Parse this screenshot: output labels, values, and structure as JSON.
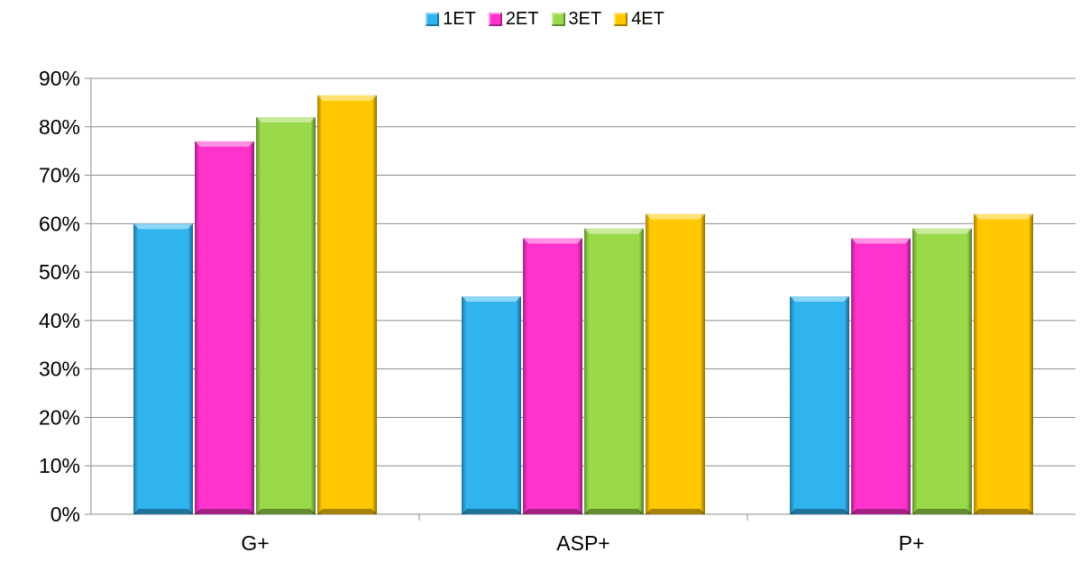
{
  "chart_data": {
    "type": "bar",
    "categories": [
      "G+",
      "ASP+",
      "P+"
    ],
    "series": [
      {
        "name": "1ET",
        "color": "#2FB4F0",
        "values": [
          0.6,
          0.45,
          0.45
        ]
      },
      {
        "name": "2ET",
        "color": "#FF33CC",
        "values": [
          0.77,
          0.57,
          0.57
        ]
      },
      {
        "name": "3ET",
        "color": "#99D94A",
        "values": [
          0.82,
          0.59,
          0.59
        ]
      },
      {
        "name": "4ET",
        "color": "#FFC800",
        "values": [
          0.865,
          0.62,
          0.62
        ]
      }
    ],
    "ylim": [
      0,
      0.9
    ],
    "yticks": [
      "0%",
      "10%",
      "20%",
      "30%",
      "40%",
      "50%",
      "60%",
      "70%",
      "80%",
      "90%"
    ],
    "grid": true,
    "legend_position": "top-center",
    "title": "",
    "xlabel": "",
    "ylabel": ""
  }
}
